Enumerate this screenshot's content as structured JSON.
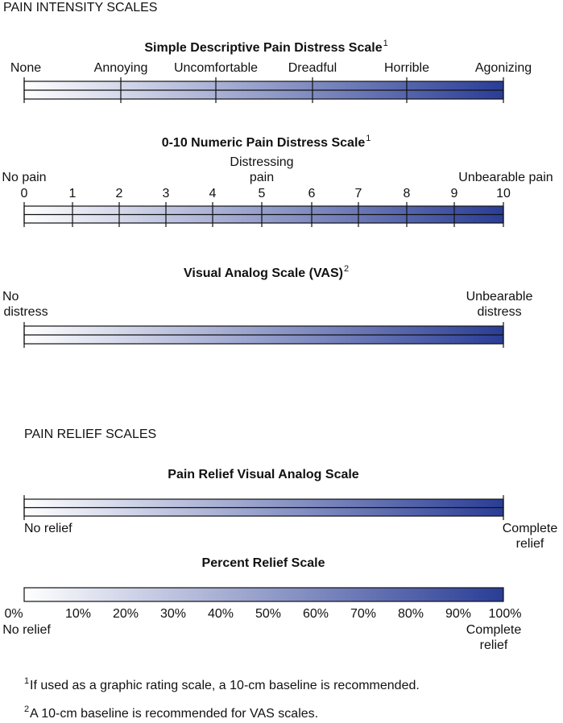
{
  "intensity": {
    "heading": "PAIN INTENSITY SCALES",
    "scales": [
      {
        "title": "Simple Descriptive Pain Distress Scale",
        "sup": "1",
        "labels": [
          "None",
          "Annoying",
          "Uncomfortable",
          "Dreadful",
          "Horrible",
          "Agonizing"
        ]
      },
      {
        "title": "0-10 Numeric Pain Distress Scale",
        "sup": "1",
        "left": "No pain",
        "middle": [
          "Distressing",
          "pain"
        ],
        "right": "Unbearable pain",
        "numbers": [
          "0",
          "1",
          "2",
          "3",
          "4",
          "5",
          "6",
          "7",
          "8",
          "9",
          "10"
        ]
      },
      {
        "title": "Visual Analog Scale (VAS)",
        "sup": "2",
        "left": [
          "No",
          "distress"
        ],
        "right": [
          "Unbearable",
          "distress"
        ]
      }
    ]
  },
  "relief": {
    "heading": "PAIN RELIEF SCALES",
    "scales": [
      {
        "title": "Pain Relief Visual Analog Scale",
        "left": "No relief",
        "right": [
          "Complete",
          "relief"
        ]
      },
      {
        "title": "Percent Relief Scale",
        "percents": [
          "0%",
          "10%",
          "20%",
          "30%",
          "40%",
          "50%",
          "60%",
          "70%",
          "80%",
          "90%",
          "100%"
        ],
        "left": "No relief",
        "right": [
          "Complete",
          "relief"
        ]
      }
    ]
  },
  "footnotes": [
    {
      "mark": "1",
      "text": "If used as a graphic rating scale, a 10-cm baseline is recommended."
    },
    {
      "mark": "2",
      "text": "A 10-cm baseline is recommended for VAS scales."
    }
  ]
}
